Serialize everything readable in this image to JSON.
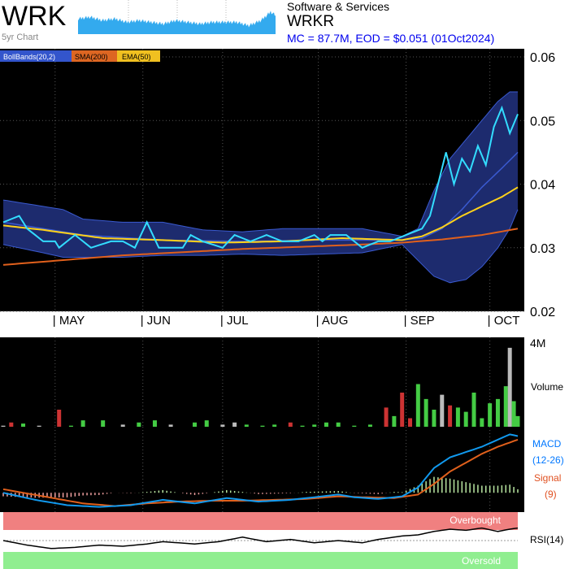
{
  "header": {
    "ticker": "WRK",
    "spark_caption": "5yr Chart",
    "sector": "Software & Services",
    "code": "WRKR",
    "market_info": "MC = 87.7M, EOD = $0.051 (01Oct2024)"
  },
  "colors": {
    "background": "#000000",
    "price": "#33ddff",
    "ema": "#ffd21a",
    "sma": "#e0601c",
    "band_fill": "#1d2b6e",
    "band_line": "#3a5ad0",
    "vol_up": "#44cc44",
    "vol_down": "#cc3333",
    "vol_flat": "#bbbbbb",
    "macd": "#1199ee",
    "signal": "#e0601c",
    "overbought": "#f08080",
    "oversold": "#90ee90",
    "spark": "#33aaee"
  },
  "legend": [
    {
      "label": "BollBands(20,2)",
      "color": "#3355cc"
    },
    {
      "label": "SMA(200)",
      "color": "#dd6622"
    },
    {
      "label": "EMA(50)",
      "color": "#f0c020"
    }
  ],
  "labels": {
    "volume": "Volume",
    "volume_max": "4M",
    "macd": "MACD",
    "macd_params": "(12-26)",
    "signal": "Signal",
    "signal_params": "(9)",
    "overbought": "Overbought",
    "oversold": "Oversold",
    "rsi": "RSI(14)"
  },
  "chart_data": {
    "type": "line",
    "title": "WRKR",
    "n_days": 130,
    "months": [
      "MAY",
      "JUN",
      "JUL",
      "AUG",
      "SEP",
      "OCT"
    ],
    "month_start_index": [
      13,
      35,
      55,
      79,
      101,
      122
    ],
    "y_ticks": [
      "0.06",
      "0.05",
      "0.04",
      "0.03",
      "0.02"
    ],
    "ylim": [
      0.02,
      0.06
    ],
    "price_keypoints": [
      [
        0,
        0.034
      ],
      [
        4,
        0.035
      ],
      [
        6,
        0.033
      ],
      [
        10,
        0.031
      ],
      [
        13,
        0.031
      ],
      [
        14,
        0.03
      ],
      [
        18,
        0.032
      ],
      [
        22,
        0.03
      ],
      [
        27,
        0.031
      ],
      [
        30,
        0.031
      ],
      [
        33,
        0.03
      ],
      [
        36,
        0.034
      ],
      [
        39,
        0.03
      ],
      [
        45,
        0.03
      ],
      [
        47,
        0.032
      ],
      [
        50,
        0.031
      ],
      [
        55,
        0.03
      ],
      [
        58,
        0.032
      ],
      [
        62,
        0.031
      ],
      [
        66,
        0.032
      ],
      [
        70,
        0.031
      ],
      [
        74,
        0.031
      ],
      [
        78,
        0.032
      ],
      [
        80,
        0.031
      ],
      [
        82,
        0.032
      ],
      [
        86,
        0.032
      ],
      [
        90,
        0.03
      ],
      [
        94,
        0.031
      ],
      [
        97,
        0.031
      ],
      [
        101,
        0.032
      ],
      [
        105,
        0.033
      ],
      [
        107,
        0.035
      ],
      [
        109,
        0.04
      ],
      [
        111,
        0.045
      ],
      [
        113,
        0.04
      ],
      [
        115,
        0.044
      ],
      [
        117,
        0.042
      ],
      [
        119,
        0.046
      ],
      [
        121,
        0.043
      ],
      [
        123,
        0.049
      ],
      [
        125,
        0.052
      ],
      [
        127,
        0.048
      ],
      [
        129,
        0.051
      ]
    ],
    "ema_keypoints": [
      [
        0,
        0.0335
      ],
      [
        10,
        0.0328
      ],
      [
        25,
        0.0315
      ],
      [
        40,
        0.0312
      ],
      [
        55,
        0.0308
      ],
      [
        70,
        0.031
      ],
      [
        85,
        0.0315
      ],
      [
        100,
        0.0312
      ],
      [
        105,
        0.0318
      ],
      [
        110,
        0.0332
      ],
      [
        115,
        0.035
      ],
      [
        120,
        0.0365
      ],
      [
        125,
        0.038
      ],
      [
        129,
        0.0395
      ]
    ],
    "sma_keypoints": [
      [
        0,
        0.0273
      ],
      [
        30,
        0.0288
      ],
      [
        60,
        0.0298
      ],
      [
        90,
        0.0305
      ],
      [
        100,
        0.0308
      ],
      [
        110,
        0.0313
      ],
      [
        120,
        0.032
      ],
      [
        129,
        0.033
      ]
    ],
    "bb_mid_keypoints": [
      [
        0,
        0.034
      ],
      [
        20,
        0.032
      ],
      [
        40,
        0.0312
      ],
      [
        60,
        0.031
      ],
      [
        80,
        0.0312
      ],
      [
        100,
        0.0312
      ],
      [
        105,
        0.0315
      ],
      [
        110,
        0.033
      ],
      [
        115,
        0.036
      ],
      [
        120,
        0.0395
      ],
      [
        125,
        0.0425
      ],
      [
        129,
        0.045
      ]
    ],
    "bb_upper_keypoints": [
      [
        0,
        0.0375
      ],
      [
        10,
        0.0365
      ],
      [
        15,
        0.036
      ],
      [
        20,
        0.0345
      ],
      [
        30,
        0.034
      ],
      [
        40,
        0.034
      ],
      [
        50,
        0.0328
      ],
      [
        60,
        0.0325
      ],
      [
        70,
        0.033
      ],
      [
        80,
        0.033
      ],
      [
        90,
        0.033
      ],
      [
        100,
        0.0318
      ],
      [
        104,
        0.033
      ],
      [
        108,
        0.039
      ],
      [
        112,
        0.044
      ],
      [
        116,
        0.047
      ],
      [
        120,
        0.05
      ],
      [
        124,
        0.053
      ],
      [
        127,
        0.0545
      ],
      [
        129,
        0.0545
      ]
    ],
    "bb_lower_keypoints": [
      [
        0,
        0.0305
      ],
      [
        10,
        0.0292
      ],
      [
        15,
        0.0285
      ],
      [
        20,
        0.0285
      ],
      [
        30,
        0.0285
      ],
      [
        40,
        0.0288
      ],
      [
        50,
        0.0288
      ],
      [
        60,
        0.029
      ],
      [
        70,
        0.0288
      ],
      [
        80,
        0.029
      ],
      [
        90,
        0.0292
      ],
      [
        100,
        0.0305
      ],
      [
        104,
        0.028
      ],
      [
        108,
        0.0255
      ],
      [
        112,
        0.0245
      ],
      [
        116,
        0.025
      ],
      [
        120,
        0.027
      ],
      [
        124,
        0.03
      ],
      [
        127,
        0.033
      ],
      [
        129,
        0.036
      ]
    ],
    "volume": {
      "ylim": [
        0,
        4
      ],
      "unit": "M",
      "bars": [
        [
          0,
          0.05,
          "f"
        ],
        [
          2,
          0.2,
          "d"
        ],
        [
          5,
          0.15,
          "u"
        ],
        [
          9,
          0.05,
          "f"
        ],
        [
          14,
          0.8,
          "d"
        ],
        [
          17,
          0.05,
          "u"
        ],
        [
          20,
          0.3,
          "u"
        ],
        [
          25,
          0.3,
          "u"
        ],
        [
          30,
          0.1,
          "f"
        ],
        [
          34,
          0.2,
          "u"
        ],
        [
          38,
          0.3,
          "u"
        ],
        [
          42,
          0.1,
          "f"
        ],
        [
          48,
          0.2,
          "u"
        ],
        [
          51,
          0.3,
          "u"
        ],
        [
          55,
          0.1,
          "f"
        ],
        [
          58,
          0.2,
          "f"
        ],
        [
          61,
          0.1,
          "u"
        ],
        [
          65,
          0.05,
          "u"
        ],
        [
          68,
          0.1,
          "u"
        ],
        [
          72,
          0.2,
          "d"
        ],
        [
          75,
          0.05,
          "u"
        ],
        [
          78,
          0.1,
          "u"
        ],
        [
          81,
          0.2,
          "u"
        ],
        [
          84,
          0.2,
          "u"
        ],
        [
          88,
          0.05,
          "u"
        ],
        [
          92,
          0.1,
          "u"
        ],
        [
          96,
          0.9,
          "d"
        ],
        [
          98,
          0.5,
          "u"
        ],
        [
          100,
          1.6,
          "d"
        ],
        [
          102,
          0.4,
          "d"
        ],
        [
          104,
          2.0,
          "u"
        ],
        [
          106,
          1.3,
          "u"
        ],
        [
          108,
          0.8,
          "u"
        ],
        [
          110,
          1.5,
          "f"
        ],
        [
          112,
          1.0,
          "d"
        ],
        [
          114,
          0.9,
          "u"
        ],
        [
          116,
          0.7,
          "u"
        ],
        [
          118,
          1.6,
          "u"
        ],
        [
          120,
          0.4,
          "u"
        ],
        [
          122,
          1.1,
          "u"
        ],
        [
          124,
          1.3,
          "u"
        ],
        [
          126,
          1.9,
          "u"
        ],
        [
          127,
          3.7,
          "f"
        ],
        [
          128,
          1.2,
          "u"
        ],
        [
          129,
          0.5,
          "u"
        ]
      ]
    },
    "macd_keypoints": [
      [
        0,
        0.0
      ],
      [
        8,
        -0.4
      ],
      [
        16,
        -0.7
      ],
      [
        24,
        -0.8
      ],
      [
        32,
        -0.7
      ],
      [
        40,
        -0.4
      ],
      [
        48,
        -0.6
      ],
      [
        56,
        -0.3
      ],
      [
        64,
        -0.5
      ],
      [
        72,
        -0.4
      ],
      [
        80,
        -0.2
      ],
      [
        84,
        -0.1
      ],
      [
        88,
        -0.25
      ],
      [
        94,
        -0.35
      ],
      [
        100,
        -0.2
      ],
      [
        104,
        0.3
      ],
      [
        108,
        1.4
      ],
      [
        112,
        2.0
      ],
      [
        116,
        2.3
      ],
      [
        120,
        2.6
      ],
      [
        124,
        3.0
      ],
      [
        127,
        3.3
      ],
      [
        129,
        3.2
      ]
    ],
    "signal_keypoints": [
      [
        0,
        0.2
      ],
      [
        10,
        -0.2
      ],
      [
        20,
        -0.6
      ],
      [
        28,
        -0.75
      ],
      [
        36,
        -0.6
      ],
      [
        44,
        -0.5
      ],
      [
        52,
        -0.45
      ],
      [
        60,
        -0.45
      ],
      [
        68,
        -0.4
      ],
      [
        76,
        -0.35
      ],
      [
        84,
        -0.2
      ],
      [
        90,
        -0.25
      ],
      [
        98,
        -0.3
      ],
      [
        104,
        -0.1
      ],
      [
        108,
        0.5
      ],
      [
        112,
        1.2
      ],
      [
        116,
        1.7
      ],
      [
        120,
        2.2
      ],
      [
        124,
        2.6
      ],
      [
        129,
        3.0
      ]
    ],
    "macd_ylim": [
      -1.0,
      3.5
    ],
    "rsi_keypoints": [
      [
        0,
        50
      ],
      [
        6,
        42
      ],
      [
        12,
        36
      ],
      [
        18,
        38
      ],
      [
        24,
        42
      ],
      [
        30,
        40
      ],
      [
        36,
        44
      ],
      [
        40,
        48
      ],
      [
        44,
        46
      ],
      [
        48,
        44
      ],
      [
        54,
        48
      ],
      [
        60,
        56
      ],
      [
        66,
        48
      ],
      [
        72,
        52
      ],
      [
        78,
        46
      ],
      [
        84,
        50
      ],
      [
        90,
        46
      ],
      [
        94,
        52
      ],
      [
        100,
        58
      ],
      [
        104,
        60
      ],
      [
        108,
        66
      ],
      [
        112,
        70
      ],
      [
        116,
        68
      ],
      [
        120,
        72
      ],
      [
        124,
        66
      ],
      [
        127,
        70
      ],
      [
        129,
        72
      ]
    ],
    "rsi_ylim": [
      0,
      100
    ],
    "spark_keypoints": [
      [
        0,
        0.4
      ],
      [
        15,
        0.45
      ],
      [
        30,
        0.35
      ],
      [
        45,
        0.4
      ],
      [
        60,
        0.3
      ],
      [
        75,
        0.35
      ],
      [
        90,
        0.3
      ],
      [
        105,
        0.25
      ],
      [
        120,
        0.35
      ],
      [
        135,
        0.3
      ],
      [
        150,
        0.25
      ],
      [
        165,
        0.3
      ],
      [
        180,
        0.3
      ],
      [
        195,
        0.3
      ],
      [
        210,
        0.2
      ],
      [
        225,
        0.35
      ],
      [
        237,
        0.6
      ],
      [
        243,
        0.5
      ]
    ]
  }
}
